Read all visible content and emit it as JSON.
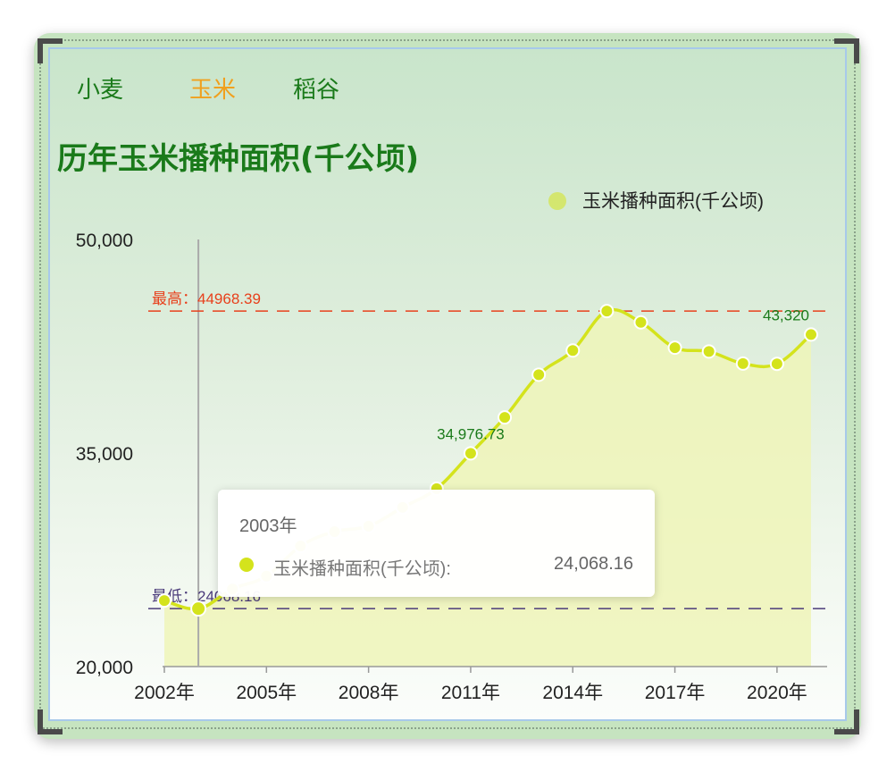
{
  "tabs": [
    {
      "label": "小麦",
      "active": false
    },
    {
      "label": "玉米",
      "active": true
    },
    {
      "label": "稻谷",
      "active": false
    }
  ],
  "colors": {
    "tab_active": "#f0a01e",
    "tab_inactive": "#1a7a1a",
    "series": "#d4e31c",
    "area": "#eef5b8",
    "max_line": "#e8401c",
    "min_line": "#4a3a7a",
    "label_green": "#1a7a1a"
  },
  "chart_data": {
    "type": "area",
    "title": "历年玉米播种面积(千公顷)",
    "legend": {
      "label": "玉米播种面积(千公顷)",
      "position": "top-right"
    },
    "x": [
      2002,
      2003,
      2004,
      2005,
      2006,
      2007,
      2008,
      2009,
      2010,
      2011,
      2012,
      2013,
      2014,
      2015,
      2016,
      2017,
      2018,
      2019,
      2020,
      2021
    ],
    "x_tick_labels": [
      "2002年",
      "2005年",
      "2008年",
      "2011年",
      "2014年",
      "2017年",
      "2020年"
    ],
    "x_tick_values": [
      2002,
      2005,
      2008,
      2011,
      2014,
      2017,
      2020
    ],
    "y_tick_labels": [
      "50,000",
      "35,000",
      "20,000"
    ],
    "y_tick_values": [
      50000,
      35000,
      20000
    ],
    "ylim": [
      20000,
      50000
    ],
    "series": [
      {
        "name": "玉米播种面积(千公顷)",
        "values": [
          24634,
          24068.16,
          25446,
          26358,
          28463,
          29478,
          29864,
          31183,
          32500,
          34976.73,
          37500,
          40500,
          42200,
          44968.39,
          44178,
          42399,
          42130,
          41284,
          41264,
          43320
        ]
      }
    ],
    "markers": {
      "max": {
        "label": "最高：44968.39",
        "value": 44968.39
      },
      "min": {
        "label": "最低：24068.16",
        "value": 24068.16
      }
    },
    "data_labels": [
      {
        "x": 2011,
        "text": "34,976.73"
      },
      {
        "x": 2021,
        "text": "43,320"
      }
    ],
    "hover_x": 2003,
    "tooltip": {
      "title": "2003年",
      "series_name": "玉米播种面积(千公顷):",
      "value": "24,068.16"
    }
  }
}
